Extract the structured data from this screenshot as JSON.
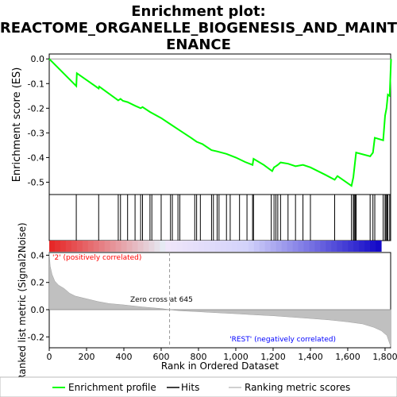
{
  "title_line1": "Enrichment plot:",
  "title_line2": "REACTOME_ORGANELLE_BIOGENESIS_AND_MAINT",
  "title_line3": "ENANCE",
  "y_label_top": "Enrichment score (ES)",
  "y_label_bottom": "Ranked list metric (Signal2Noise)",
  "x_label": "Rank in Ordered Dataset",
  "zero_cross_label": "Zero cross at 645",
  "positive_label": "'2' (positively correlated)",
  "negative_label": "'REST' (negatively correlated)",
  "legend": {
    "enrichment": "Enrichment profile",
    "hits": "Hits",
    "ranking": "Ranking metric scores"
  },
  "colors": {
    "es_line": "#00ff00",
    "positive_text": "#ff0000",
    "negative_text": "#0000ff",
    "metric_fill": "#c0c0c0"
  },
  "chart_data": {
    "type": "line",
    "x_range": [
      0,
      1830
    ],
    "x_ticks": [
      0,
      200,
      400,
      600,
      800,
      1000,
      1200,
      1400,
      1600,
      1800
    ],
    "x_tick_labels": [
      "0",
      "200",
      "400",
      "600",
      "800",
      "1,000",
      "1,200",
      "1,400",
      "1,600",
      "1,800"
    ],
    "es_ylim": [
      -0.55,
      0.02
    ],
    "es_y_ticks": [
      0.0,
      -0.1,
      -0.2,
      -0.3,
      -0.4,
      -0.5
    ],
    "es_y_tick_labels": [
      "0.0",
      "-0.1",
      "-0.2",
      "-0.3",
      "-0.4",
      "-0.5"
    ],
    "metric_ylim": [
      -0.28,
      0.42
    ],
    "metric_y_ticks": [
      0.4,
      0.2,
      0.0,
      -0.2
    ],
    "metric_y_tick_labels": [
      "0.4",
      "0.2",
      "0.0",
      "-0.2"
    ],
    "zero_cross": 645,
    "es_profile": [
      [
        0,
        0.0
      ],
      [
        145,
        -0.11
      ],
      [
        148,
        -0.058
      ],
      [
        265,
        -0.12
      ],
      [
        268,
        -0.112
      ],
      [
        370,
        -0.168
      ],
      [
        382,
        -0.162
      ],
      [
        395,
        -0.17
      ],
      [
        420,
        -0.175
      ],
      [
        460,
        -0.19
      ],
      [
        490,
        -0.2
      ],
      [
        500,
        -0.195
      ],
      [
        540,
        -0.215
      ],
      [
        600,
        -0.24
      ],
      [
        650,
        -0.265
      ],
      [
        700,
        -0.29
      ],
      [
        760,
        -0.32
      ],
      [
        790,
        -0.336
      ],
      [
        820,
        -0.345
      ],
      [
        870,
        -0.37
      ],
      [
        900,
        -0.375
      ],
      [
        950,
        -0.385
      ],
      [
        1000,
        -0.4
      ],
      [
        1050,
        -0.418
      ],
      [
        1090,
        -0.43
      ],
      [
        1095,
        -0.405
      ],
      [
        1150,
        -0.43
      ],
      [
        1195,
        -0.455
      ],
      [
        1205,
        -0.44
      ],
      [
        1215,
        -0.435
      ],
      [
        1225,
        -0.43
      ],
      [
        1240,
        -0.42
      ],
      [
        1280,
        -0.425
      ],
      [
        1320,
        -0.435
      ],
      [
        1360,
        -0.43
      ],
      [
        1400,
        -0.44
      ],
      [
        1480,
        -0.47
      ],
      [
        1530,
        -0.49
      ],
      [
        1545,
        -0.475
      ],
      [
        1620,
        -0.515
      ],
      [
        1630,
        -0.48
      ],
      [
        1645,
        -0.38
      ],
      [
        1720,
        -0.395
      ],
      [
        1735,
        -0.38
      ],
      [
        1745,
        -0.32
      ],
      [
        1790,
        -0.33
      ],
      [
        1800,
        -0.23
      ],
      [
        1808,
        -0.2
      ],
      [
        1815,
        -0.145
      ],
      [
        1825,
        -0.15
      ],
      [
        1832,
        0.0
      ]
    ],
    "hits": [
      145,
      265,
      370,
      382,
      420,
      460,
      490,
      500,
      540,
      550,
      600,
      650,
      660,
      690,
      700,
      780,
      790,
      810,
      870,
      880,
      900,
      910,
      950,
      970,
      1020,
      1060,
      1090,
      1095,
      1190,
      1205,
      1215,
      1225,
      1240,
      1280,
      1320,
      1360,
      1400,
      1530,
      1620,
      1630,
      1635,
      1640,
      1645,
      1720,
      1735,
      1745,
      1790,
      1800,
      1805,
      1810,
      1815,
      1825
    ],
    "metric_profile": [
      [
        0,
        0.42
      ],
      [
        5,
        0.32
      ],
      [
        15,
        0.26
      ],
      [
        30,
        0.21
      ],
      [
        50,
        0.18
      ],
      [
        80,
        0.155
      ],
      [
        110,
        0.12
      ],
      [
        140,
        0.1
      ],
      [
        200,
        0.08
      ],
      [
        260,
        0.06
      ],
      [
        320,
        0.045
      ],
      [
        400,
        0.035
      ],
      [
        500,
        0.02
      ],
      [
        600,
        0.008
      ],
      [
        645,
        0.0
      ],
      [
        700,
        -0.008
      ],
      [
        800,
        -0.015
      ],
      [
        900,
        -0.023
      ],
      [
        1000,
        -0.03
      ],
      [
        1100,
        -0.038
      ],
      [
        1200,
        -0.045
      ],
      [
        1300,
        -0.055
      ],
      [
        1400,
        -0.065
      ],
      [
        1500,
        -0.075
      ],
      [
        1600,
        -0.09
      ],
      [
        1680,
        -0.105
      ],
      [
        1740,
        -0.13
      ],
      [
        1780,
        -0.155
      ],
      [
        1810,
        -0.19
      ],
      [
        1825,
        -0.25
      ],
      [
        1832,
        -0.28
      ]
    ]
  }
}
